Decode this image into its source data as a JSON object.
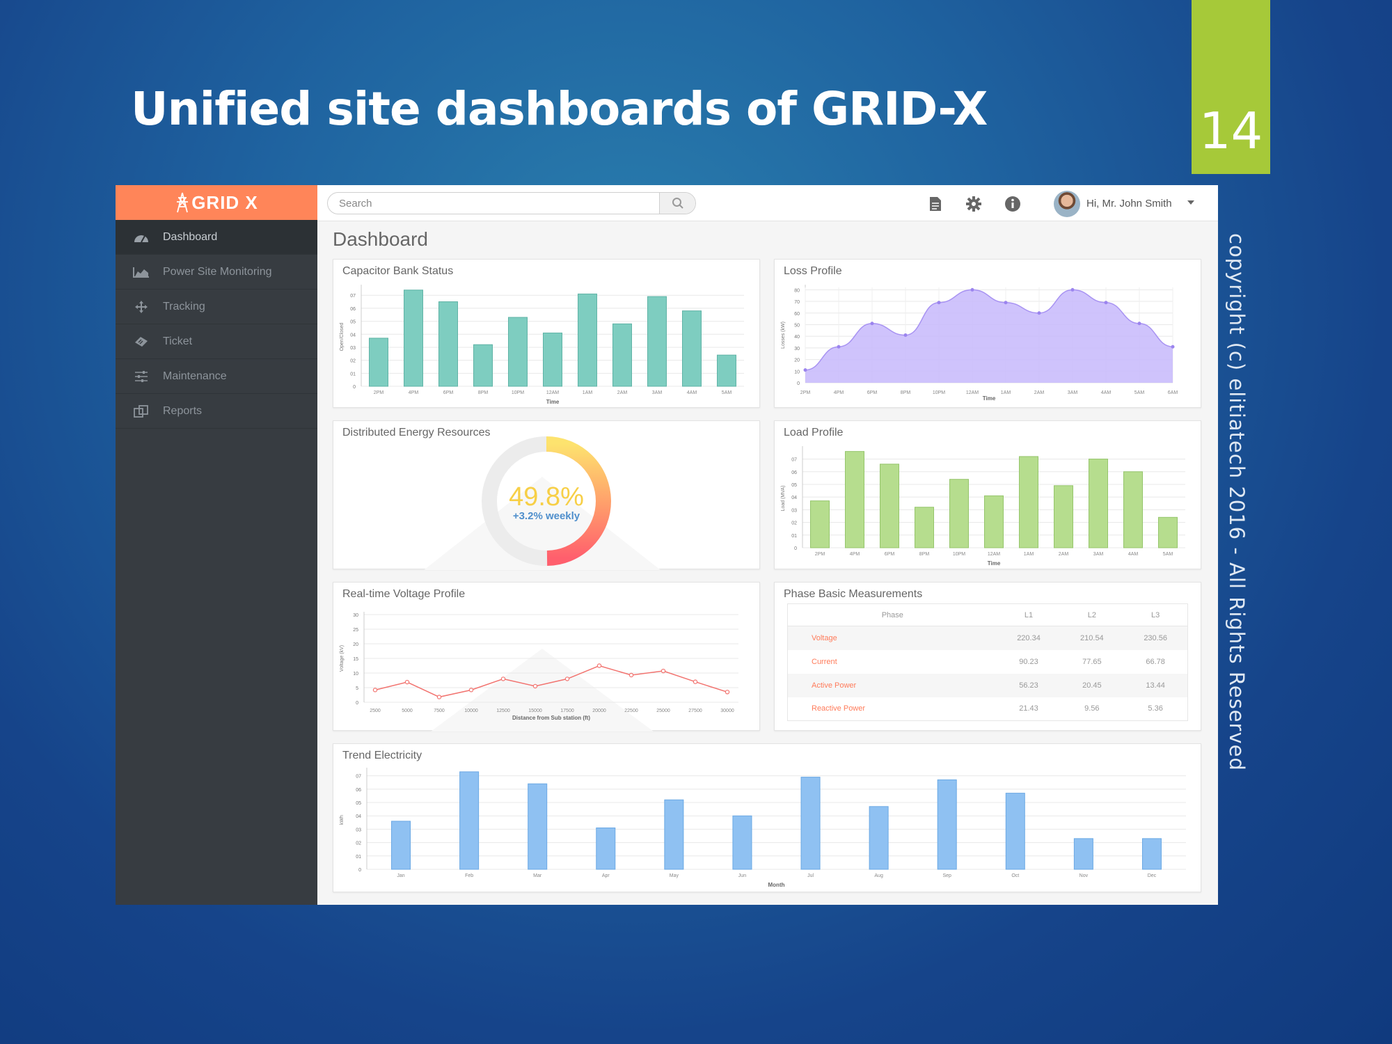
{
  "slide": {
    "title": "Unified site dashboards of GRID-X",
    "number": "14",
    "copyright": "copyright (c) elitiatech 2016 - All Rights Reserved"
  },
  "app": {
    "logo_text": "GRID X",
    "search_placeholder": "Search",
    "user_greeting": "Hi, Mr. John Smith",
    "page_title": "Dashboard"
  },
  "sidebar": {
    "items": [
      {
        "label": "Dashboard",
        "icon": "dashboard-gauge-icon",
        "active": true
      },
      {
        "label": "Power Site Monitoring",
        "icon": "area-chart-icon",
        "active": false
      },
      {
        "label": "Tracking",
        "icon": "arrows-move-icon",
        "active": false
      },
      {
        "label": "Ticket",
        "icon": "ticket-icon",
        "active": false
      },
      {
        "label": "Maintenance",
        "icon": "sliders-icon",
        "active": false
      },
      {
        "label": "Reports",
        "icon": "copy-documents-icon",
        "active": false
      }
    ]
  },
  "colors": {
    "accent": "#ff8559",
    "sidebar": "#373c41",
    "teal_bar": "#7ecdc0",
    "purple_area": "#c7b8fb",
    "green_bar": "#b6dd8e",
    "red_line": "#f2736f",
    "blue_bar": "#8fc1f2",
    "donut_gradient": [
      "#fde36e",
      "#ff9b6b",
      "#ff5f6d"
    ]
  },
  "cards": {
    "capacitor": {
      "title": "Capacitor Bank Status"
    },
    "loss": {
      "title": "Loss Profile"
    },
    "der": {
      "title": "Distributed Energy Resources",
      "value": "49.8%",
      "sub": "+3.2% weekly"
    },
    "load": {
      "title": "Load Profile"
    },
    "voltage": {
      "title": "Real-time Voltage Profile"
    },
    "phase": {
      "title": "Phase Basic Measurements"
    },
    "trend": {
      "title": "Trend Electricity"
    }
  },
  "phase_table": {
    "headers": [
      "Phase",
      "L1",
      "L2",
      "L3"
    ],
    "rows": [
      {
        "label": "Voltage",
        "values": [
          "220.34",
          "210.54",
          "230.56"
        ]
      },
      {
        "label": "Current",
        "values": [
          "90.23",
          "77.65",
          "66.78"
        ]
      },
      {
        "label": "Active Power",
        "values": [
          "56.23",
          "20.45",
          "13.44"
        ]
      },
      {
        "label": "Reactive Power",
        "values": [
          "21.43",
          "9.56",
          "5.36"
        ]
      }
    ]
  },
  "chart_data": [
    {
      "id": "capacitor",
      "type": "bar",
      "categories": [
        "2PM",
        "4PM",
        "6PM",
        "8PM",
        "10PM",
        "12AM",
        "1AM",
        "2AM",
        "3AM",
        "4AM",
        "5AM"
      ],
      "values": [
        3.7,
        7.4,
        6.5,
        3.2,
        5.3,
        4.1,
        7.1,
        4.8,
        6.9,
        5.8,
        2.4
      ],
      "xlabel": "Time",
      "ylabel": "Open/Closed",
      "yticks": [
        "0",
        "01",
        "02",
        "03",
        "04",
        "05",
        "06",
        "07"
      ],
      "ylim": [
        0,
        7.6
      ],
      "grid": true
    },
    {
      "id": "loss",
      "type": "area",
      "categories": [
        "2PM",
        "4PM",
        "6PM",
        "8PM",
        "10PM",
        "12AM",
        "1AM",
        "2AM",
        "3AM",
        "4AM",
        "5AM",
        "6AM"
      ],
      "values": [
        11,
        31,
        51,
        41,
        69,
        80,
        69,
        60,
        80,
        69,
        51,
        31
      ],
      "xlabel": "Time",
      "ylabel": "Losses (kW)",
      "yticks": [
        "0",
        "10",
        "20",
        "30",
        "40",
        "50",
        "60",
        "70",
        "80"
      ],
      "ylim": [
        0,
        82
      ],
      "grid": true
    },
    {
      "id": "load",
      "type": "bar",
      "categories": [
        "2PM",
        "4PM",
        "6PM",
        "8PM",
        "10PM",
        "12AM",
        "1AM",
        "2AM",
        "3AM",
        "4AM",
        "5AM"
      ],
      "values": [
        3.7,
        7.6,
        6.6,
        3.2,
        5.4,
        4.1,
        7.2,
        4.9,
        7.0,
        6.0,
        2.4
      ],
      "xlabel": "Time",
      "ylabel": "Load (MVA)",
      "yticks": [
        "0",
        "01",
        "02",
        "03",
        "04",
        "05",
        "06",
        "07"
      ],
      "ylim": [
        0,
        7.8
      ],
      "grid": true
    },
    {
      "id": "voltage",
      "type": "line",
      "x": [
        2500,
        5000,
        7500,
        10000,
        12500,
        15000,
        17500,
        20000,
        22500,
        25000,
        27500,
        30000
      ],
      "values": [
        4.2,
        6.9,
        1.8,
        4.2,
        8.0,
        5.5,
        8.0,
        12.5,
        9.3,
        10.7,
        7.0,
        3.5
      ],
      "xlabel": "Distance from Sub station (ft)",
      "ylabel": "Voltage (kV)",
      "yticks": [
        "0",
        "5",
        "10",
        "15",
        "20",
        "25",
        "30"
      ],
      "ylim": [
        0,
        30
      ],
      "grid": true
    },
    {
      "id": "trend",
      "type": "bar",
      "categories": [
        "Jan",
        "Feb",
        "Mar",
        "Apr",
        "May",
        "Jun",
        "Jul",
        "Aug",
        "Sep",
        "Oct",
        "Nov",
        "Dec"
      ],
      "values": [
        3.6,
        7.3,
        6.4,
        3.1,
        5.2,
        4.0,
        6.9,
        4.7,
        6.7,
        5.7,
        2.3,
        2.3
      ],
      "xlabel": "Month",
      "ylabel": "kWh",
      "yticks": [
        "0",
        "01",
        "02",
        "03",
        "04",
        "05",
        "06",
        "07"
      ],
      "ylim": [
        0,
        7.4
      ],
      "grid": true
    }
  ]
}
